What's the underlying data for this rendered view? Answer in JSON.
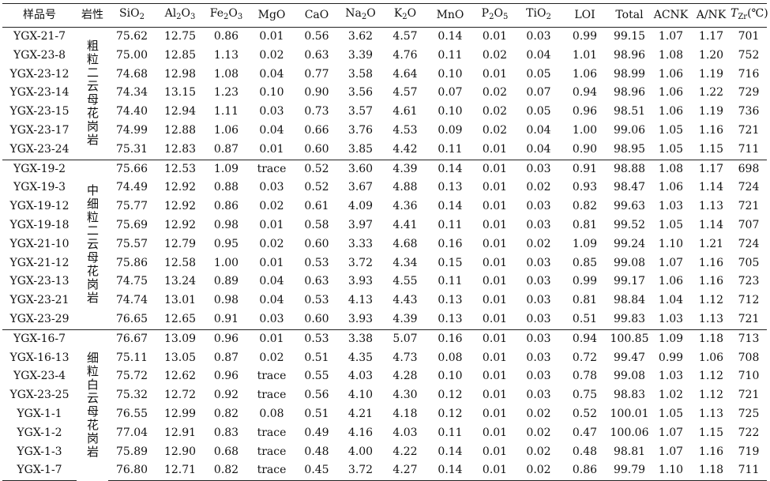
{
  "table": {
    "headers": [
      "样品号",
      "岩性",
      "SiO2",
      "Al2O3",
      "Fe2O3",
      "MgO",
      "CaO",
      "Na2O",
      "K2O",
      "MnO",
      "P2O5",
      "TiO2",
      "LOI",
      "Total",
      "ACNK",
      "A/NK",
      "TZr(℃)"
    ],
    "groups": [
      {
        "rock_type": "粗粒二云母花岗岩",
        "rows": [
          [
            "YGX-21-7",
            "75.62",
            "12.75",
            "0.86",
            "0.01",
            "0.56",
            "3.62",
            "4.57",
            "0.14",
            "0.01",
            "0.03",
            "0.99",
            "99.15",
            "1.07",
            "1.17",
            "701"
          ],
          [
            "YGX-23-8",
            "75.00",
            "12.85",
            "1.13",
            "0.02",
            "0.63",
            "3.39",
            "4.76",
            "0.11",
            "0.02",
            "0.04",
            "1.01",
            "98.96",
            "1.08",
            "1.20",
            "752"
          ],
          [
            "YGX-23-12",
            "74.68",
            "12.98",
            "1.08",
            "0.04",
            "0.77",
            "3.58",
            "4.64",
            "0.10",
            "0.01",
            "0.05",
            "1.06",
            "98.99",
            "1.06",
            "1.19",
            "716"
          ],
          [
            "YGX-23-14",
            "74.34",
            "13.15",
            "1.23",
            "0.10",
            "0.90",
            "3.56",
            "4.57",
            "0.07",
            "0.02",
            "0.07",
            "0.94",
            "98.96",
            "1.06",
            "1.22",
            "729"
          ],
          [
            "YGX-23-15",
            "74.40",
            "12.94",
            "1.11",
            "0.03",
            "0.73",
            "3.57",
            "4.61",
            "0.10",
            "0.02",
            "0.05",
            "0.96",
            "98.51",
            "1.06",
            "1.19",
            "736"
          ],
          [
            "YGX-23-17",
            "74.99",
            "12.88",
            "1.06",
            "0.04",
            "0.66",
            "3.76",
            "4.53",
            "0.09",
            "0.02",
            "0.04",
            "1.00",
            "99.06",
            "1.05",
            "1.16",
            "721"
          ],
          [
            "YGX-23-24",
            "75.31",
            "12.83",
            "0.87",
            "0.01",
            "0.60",
            "3.85",
            "4.42",
            "0.11",
            "0.01",
            "0.04",
            "0.90",
            "98.95",
            "1.05",
            "1.15",
            "711"
          ]
        ]
      },
      {
        "rock_type": "中细粒二云母花岗岩",
        "rows": [
          [
            "YGX-19-2",
            "75.66",
            "12.53",
            "1.09",
            "trace",
            "0.52",
            "3.60",
            "4.39",
            "0.14",
            "0.01",
            "0.03",
            "0.91",
            "98.88",
            "1.08",
            "1.17",
            "698"
          ],
          [
            "YGX-19-3",
            "74.49",
            "12.92",
            "0.88",
            "0.03",
            "0.52",
            "3.67",
            "4.88",
            "0.13",
            "0.01",
            "0.02",
            "0.93",
            "98.47",
            "1.06",
            "1.14",
            "724"
          ],
          [
            "YGX-19-12",
            "75.77",
            "12.92",
            "0.86",
            "0.02",
            "0.61",
            "4.09",
            "4.36",
            "0.14",
            "0.01",
            "0.03",
            "0.82",
            "99.63",
            "1.03",
            "1.13",
            "721"
          ],
          [
            "YGX-19-18",
            "75.69",
            "12.92",
            "0.98",
            "0.01",
            "0.58",
            "3.97",
            "4.41",
            "0.11",
            "0.01",
            "0.03",
            "0.81",
            "99.52",
            "1.05",
            "1.14",
            "707"
          ],
          [
            "YGX-21-10",
            "75.57",
            "12.79",
            "0.95",
            "0.02",
            "0.60",
            "3.33",
            "4.68",
            "0.16",
            "0.01",
            "0.02",
            "1.09",
            "99.24",
            "1.10",
            "1.21",
            "724"
          ],
          [
            "YGX-21-12",
            "75.86",
            "12.58",
            "1.00",
            "0.01",
            "0.53",
            "3.72",
            "4.34",
            "0.15",
            "0.01",
            "0.03",
            "0.85",
            "99.08",
            "1.07",
            "1.16",
            "705"
          ],
          [
            "YGX-23-13",
            "74.75",
            "13.24",
            "0.89",
            "0.04",
            "0.63",
            "3.93",
            "4.55",
            "0.11",
            "0.01",
            "0.03",
            "0.99",
            "99.17",
            "1.06",
            "1.16",
            "723"
          ],
          [
            "YGX-23-21",
            "74.74",
            "13.01",
            "0.98",
            "0.04",
            "0.53",
            "4.13",
            "4.43",
            "0.13",
            "0.01",
            "0.03",
            "0.81",
            "98.84",
            "1.04",
            "1.12",
            "712"
          ],
          [
            "YGX-23-29",
            "76.65",
            "12.65",
            "0.91",
            "0.03",
            "0.60",
            "3.93",
            "4.39",
            "0.13",
            "0.01",
            "0.03",
            "0.51",
            "99.83",
            "1.03",
            "1.13",
            "721"
          ]
        ]
      },
      {
        "rock_type": "细粒白云母花岗岩",
        "rows": [
          [
            "YGX-16-7",
            "76.67",
            "13.09",
            "0.96",
            "0.01",
            "0.53",
            "3.38",
            "5.07",
            "0.16",
            "0.01",
            "0.03",
            "0.94",
            "100.85",
            "1.09",
            "1.18",
            "713"
          ],
          [
            "YGX-16-13",
            "75.11",
            "13.05",
            "0.87",
            "0.02",
            "0.51",
            "4.35",
            "4.73",
            "0.08",
            "0.01",
            "0.03",
            "0.72",
            "99.47",
            "0.99",
            "1.06",
            "708"
          ],
          [
            "YGX-23-4",
            "75.72",
            "12.62",
            "0.96",
            "trace",
            "0.55",
            "4.03",
            "4.28",
            "0.10",
            "0.01",
            "0.03",
            "0.78",
            "99.08",
            "1.03",
            "1.12",
            "710"
          ],
          [
            "YGX-23-25",
            "75.32",
            "12.72",
            "0.92",
            "trace",
            "0.56",
            "4.10",
            "4.30",
            "0.12",
            "0.01",
            "0.03",
            "0.75",
            "98.83",
            "1.02",
            "1.12",
            "721"
          ],
          [
            "YGX-1-1",
            "76.55",
            "12.99",
            "0.82",
            "0.08",
            "0.51",
            "4.21",
            "4.18",
            "0.12",
            "0.01",
            "0.02",
            "0.52",
            "100.01",
            "1.05",
            "1.13",
            "725"
          ],
          [
            "YGX-1-2",
            "77.04",
            "12.91",
            "0.83",
            "trace",
            "0.49",
            "4.16",
            "4.03",
            "0.11",
            "0.01",
            "0.02",
            "0.47",
            "100.06",
            "1.07",
            "1.15",
            "722"
          ],
          [
            "YGX-1-3",
            "75.89",
            "12.90",
            "0.68",
            "trace",
            "0.48",
            "4.00",
            "4.22",
            "0.14",
            "0.01",
            "0.02",
            "0.48",
            "98.81",
            "1.07",
            "1.16",
            "719"
          ],
          [
            "YGX-1-7",
            "76.80",
            "12.71",
            "0.82",
            "trace",
            "0.45",
            "3.72",
            "4.27",
            "0.14",
            "0.01",
            "0.02",
            "0.86",
            "99.79",
            "1.10",
            "1.18",
            "711"
          ]
        ]
      }
    ]
  }
}
